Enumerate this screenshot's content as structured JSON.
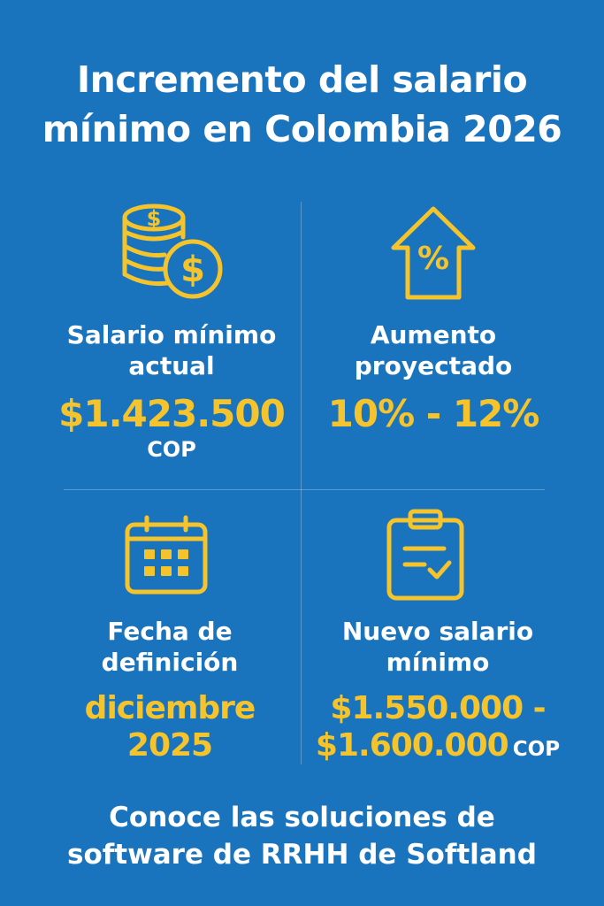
{
  "title": {
    "line1": "Incremento del salario",
    "line2": "mínimo en Colombia 2026"
  },
  "colors": {
    "background": "#1a74bd",
    "accent": "#f5c42c",
    "text": "#ffffff"
  },
  "cards": [
    {
      "icon": "coins-dollar-icon",
      "label_line1": "Salario mínimo",
      "label_line2": "actual",
      "value": "$1.423.500",
      "unit": "COP"
    },
    {
      "icon": "house-percent-icon",
      "label_line1": "Aumento",
      "label_line2": "proyectado",
      "value": "10% - 12%"
    },
    {
      "icon": "calendar-icon",
      "label_line1": "Fecha de",
      "label_line2": "definición",
      "value_line1": "diciembre",
      "value_line2": "2025"
    },
    {
      "icon": "clipboard-check-icon",
      "label_line1": "Nuevo salario",
      "label_line2": "mínimo",
      "value_line1": "$1.550.000 -",
      "value_line2": "$1.600.000",
      "unit": "COP"
    }
  ],
  "footer": {
    "line1": "Conoce las soluciones de",
    "line2": "software de RRHH de Softland"
  }
}
